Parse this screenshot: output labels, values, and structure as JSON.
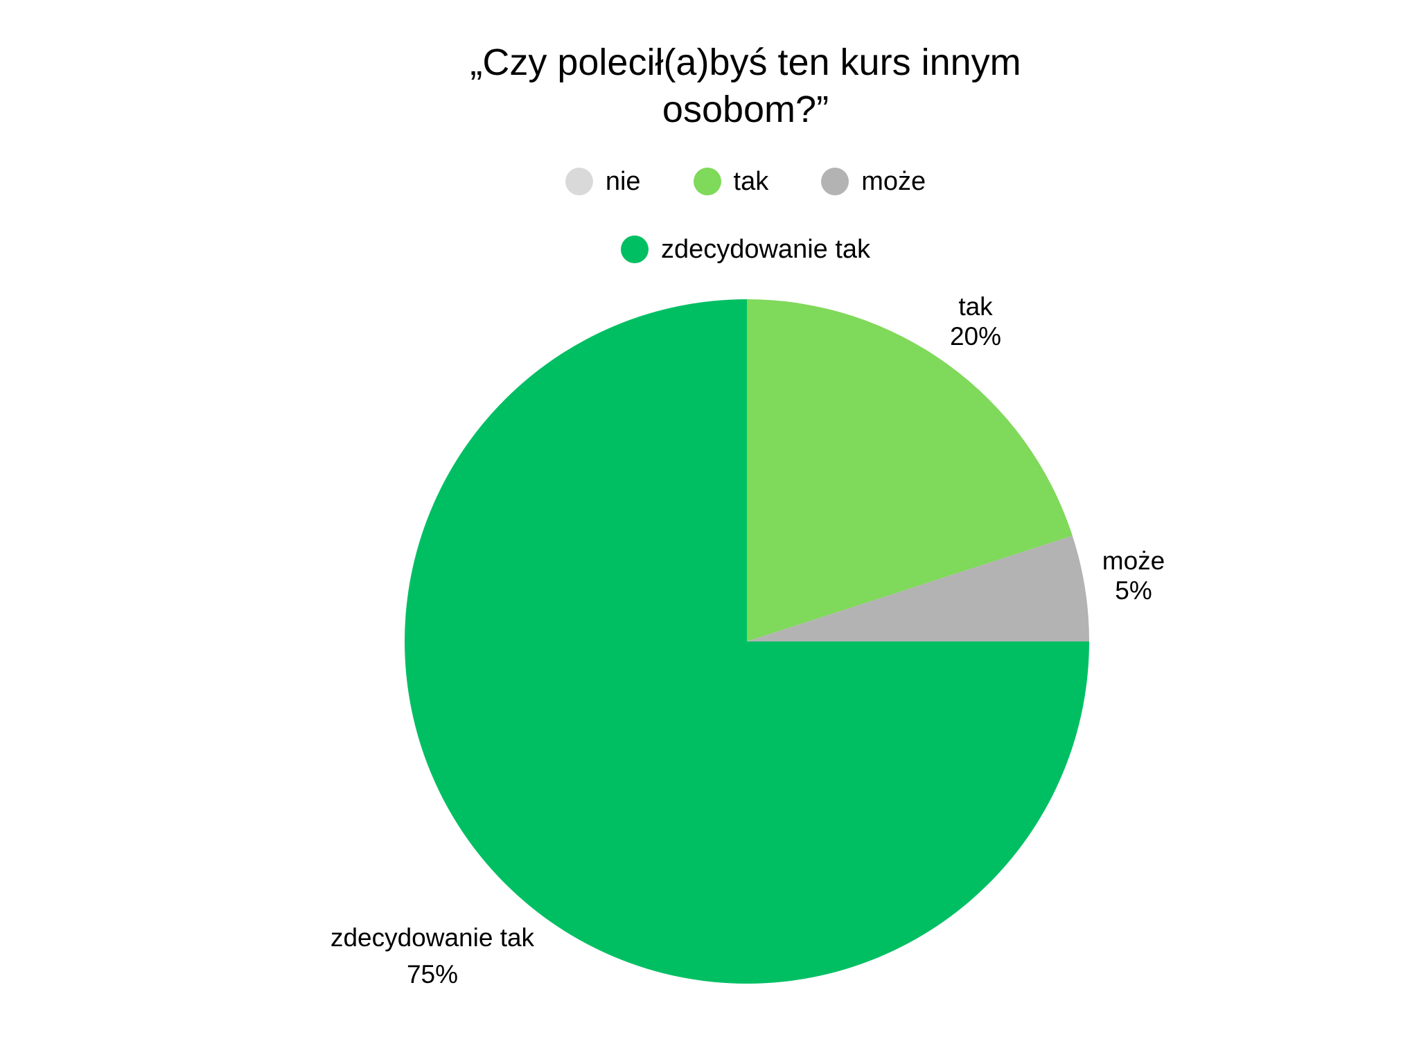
{
  "chart_data": {
    "type": "pie",
    "title_lines": [
      "„Czy polecił(a)byś ten kurs innym",
      "osobom?”"
    ],
    "legend_placement": "top",
    "legend": [
      {
        "label": "nie",
        "color": "#d9d9d9"
      },
      {
        "label": "tak",
        "color": "#7fd95a"
      },
      {
        "label": "może",
        "color": "#b3b3b3"
      },
      {
        "label": "zdecydowanie tak",
        "color": "#00bf63"
      }
    ],
    "slices": [
      {
        "label": "nie",
        "value": 0,
        "value_label": "",
        "color": "#d9d9d9"
      },
      {
        "label": "tak",
        "value": 20,
        "value_label": "20%",
        "color": "#7fd95a"
      },
      {
        "label": "może",
        "value": 5,
        "value_label": "5%",
        "color": "#b3b3b3"
      },
      {
        "label": "zdecydowanie tak",
        "value": 75,
        "value_label": "75%",
        "color": "#00bf63"
      }
    ]
  }
}
